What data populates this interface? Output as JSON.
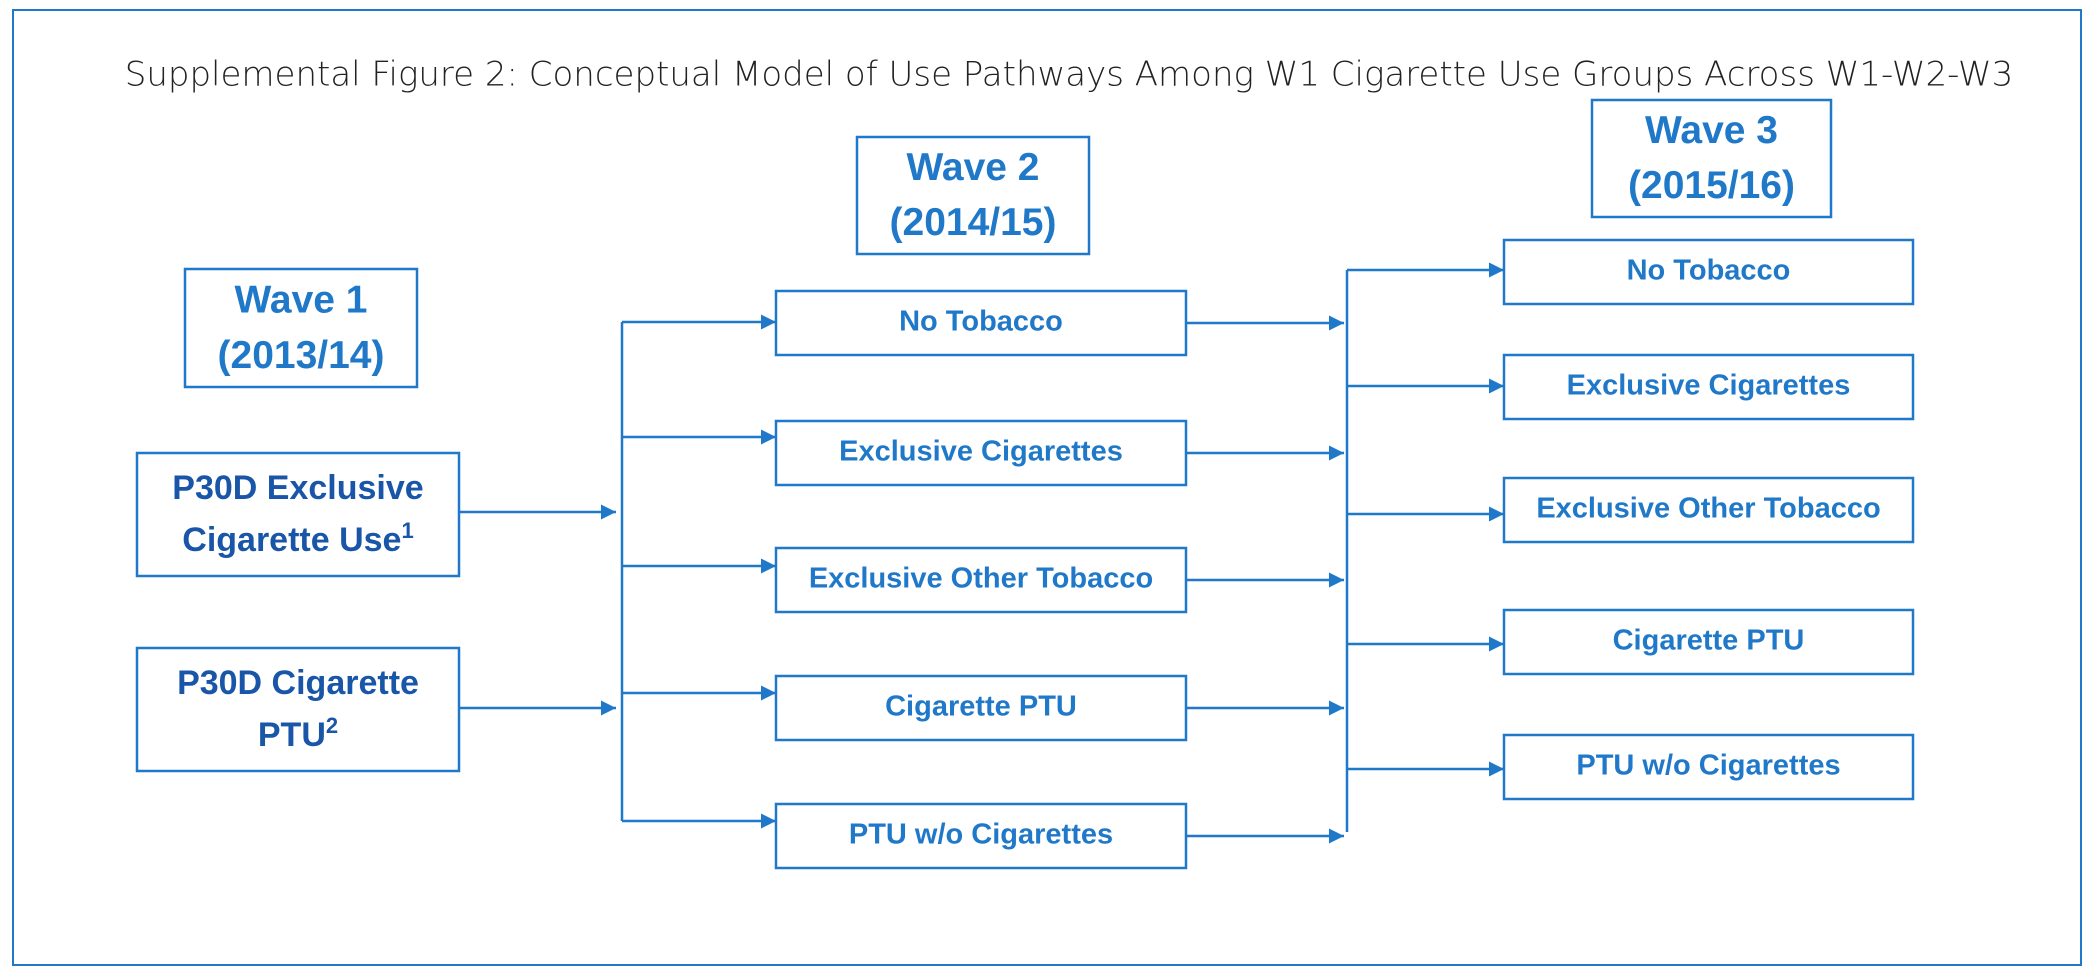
{
  "title": "Supplemental Figure 2: Conceptual Model of Use Pathways Among W1 Cigarette Use Groups Across W1-W2-W3",
  "waves": [
    {
      "label": "Wave 1",
      "period": "(2013/14)"
    },
    {
      "label": "Wave 2",
      "period": "(2014/15)"
    },
    {
      "label": "Wave 3",
      "period": "(2015/16)"
    }
  ],
  "wave1_nodes": [
    {
      "lines": [
        "P30D Exclusive",
        "Cigarette Use"
      ],
      "footnote": "1"
    },
    {
      "lines": [
        "P30D Cigarette",
        "PTU"
      ],
      "footnote": "2"
    }
  ],
  "wave2_nodes": [
    "No Tobacco",
    "Exclusive Cigarettes",
    "Exclusive Other Tobacco",
    "Cigarette PTU",
    "PTU w/o Cigarettes"
  ],
  "wave3_nodes": [
    "No Tobacco",
    "Exclusive Cigarettes",
    "Exclusive Other Tobacco",
    "Cigarette PTU",
    "PTU w/o Cigarettes"
  ]
}
